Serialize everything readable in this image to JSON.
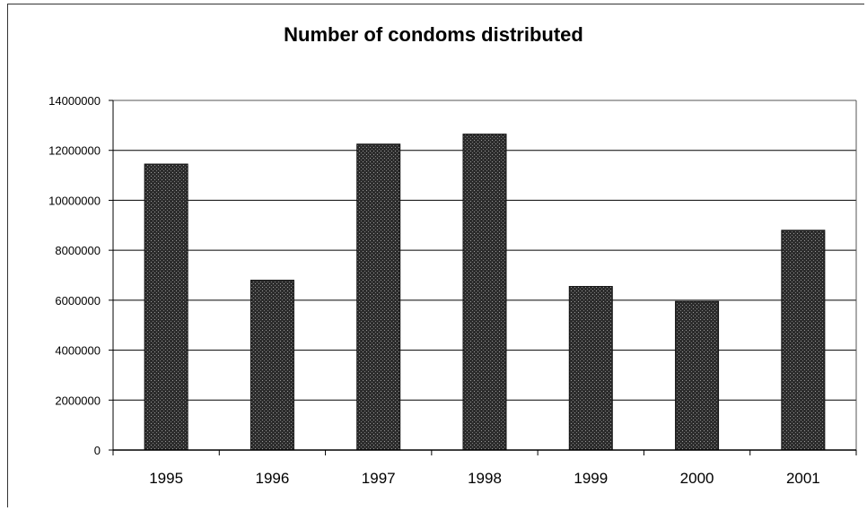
{
  "chart_data": {
    "type": "bar",
    "title": "Number of condoms distributed",
    "xlabel": "",
    "ylabel": "",
    "categories": [
      "1995",
      "1996",
      "1997",
      "1998",
      "1999",
      "2000",
      "2001"
    ],
    "values": [
      11450000,
      6800000,
      12250000,
      12650000,
      6550000,
      5950000,
      8800000
    ],
    "ylim": [
      0,
      14000000
    ],
    "yticks": [
      "0",
      "2000000",
      "4000000",
      "6000000",
      "8000000",
      "10000000",
      "12000000",
      "14000000"
    ],
    "grid": true,
    "legend": "none",
    "colors": {
      "bar": "#3a3a3a",
      "grid": "#000000",
      "background": "#ffffff"
    }
  }
}
